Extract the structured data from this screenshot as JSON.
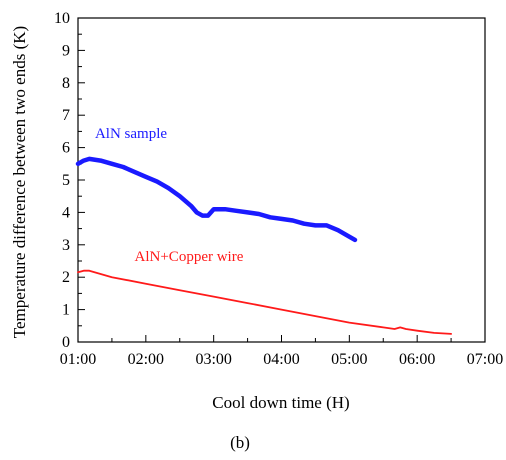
{
  "chart_data": {
    "type": "line",
    "title": "",
    "xlabel": "Cool down time (H)",
    "ylabel": "Temperature difference between two ends (K)",
    "caption": "(b)",
    "x_ticks": [
      "01:00",
      "02:00",
      "03:00",
      "04:00",
      "05:00",
      "06:00",
      "07:00"
    ],
    "y_ticks": [
      "0",
      "1",
      "2",
      "3",
      "4",
      "5",
      "6",
      "7",
      "8",
      "9",
      "10"
    ],
    "xlim": [
      "01:00",
      "07:00"
    ],
    "ylim": [
      0,
      10
    ],
    "grid": false,
    "series": [
      {
        "name": "AlN sample",
        "color": "#1a1aff",
        "x": [
          "01:00",
          "01:05",
          "01:10",
          "01:20",
          "01:30",
          "01:40",
          "01:50",
          "02:00",
          "02:10",
          "02:20",
          "02:30",
          "02:40",
          "02:45",
          "02:50",
          "02:55",
          "03:00",
          "03:10",
          "03:20",
          "03:30",
          "03:40",
          "03:50",
          "04:00",
          "04:10",
          "04:20",
          "04:30",
          "04:40",
          "04:50",
          "05:00",
          "05:05"
        ],
        "values": [
          5.5,
          5.6,
          5.65,
          5.6,
          5.5,
          5.4,
          5.25,
          5.1,
          4.95,
          4.75,
          4.5,
          4.2,
          4.0,
          3.9,
          3.9,
          4.1,
          4.1,
          4.05,
          4.0,
          3.95,
          3.85,
          3.8,
          3.75,
          3.65,
          3.6,
          3.6,
          3.45,
          3.25,
          3.15
        ]
      },
      {
        "name": "AlN+Copper wire",
        "color": "#ff1a1a",
        "x": [
          "01:00",
          "01:05",
          "01:10",
          "01:30",
          "02:00",
          "02:30",
          "03:00",
          "03:30",
          "04:00",
          "04:30",
          "05:00",
          "05:30",
          "05:40",
          "05:45",
          "05:50",
          "06:00",
          "06:15",
          "06:30"
        ],
        "values": [
          2.15,
          2.2,
          2.2,
          2.0,
          1.8,
          1.6,
          1.4,
          1.2,
          1.0,
          0.8,
          0.6,
          0.45,
          0.4,
          0.45,
          0.4,
          0.35,
          0.28,
          0.25
        ]
      }
    ]
  }
}
